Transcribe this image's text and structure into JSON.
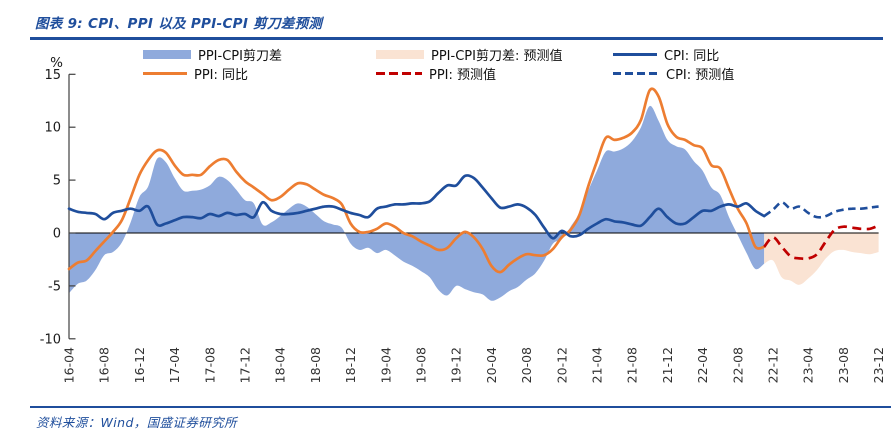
{
  "header": {
    "title": "图表 9:  CPI、PPI 以及 PPI-CPI 剪刀差预测"
  },
  "footer": {
    "source": "资料来源：Wind，国盛证券研究所"
  },
  "legend": {
    "items": [
      {
        "label": "PPI-CPI剪刀差",
        "swatch": "fill",
        "color": "#8FAADC"
      },
      {
        "label": "PPI-CPI剪刀差: 预测值",
        "swatch": "fill",
        "color": "#FAE3D3"
      },
      {
        "label": "CPI: 同比",
        "swatch": "line",
        "color": "#1F4E9C"
      },
      {
        "label": "PPI: 同比",
        "swatch": "line",
        "color": "#ED7D31"
      },
      {
        "label": "PPI: 预测值",
        "swatch": "dash",
        "color": "#C00000"
      },
      {
        "label": "CPI: 预测值",
        "swatch": "dash",
        "color": "#1F4E9C"
      }
    ]
  },
  "chart_data": {
    "type": "line",
    "unit": "%",
    "ylim": [
      -10,
      15
    ],
    "yticks": [
      15,
      10,
      5,
      0,
      -5,
      -10
    ],
    "grid": false,
    "x_tick_labels": [
      "16-04",
      "16-08",
      "16-12",
      "17-04",
      "17-08",
      "17-12",
      "18-04",
      "18-08",
      "18-12",
      "19-04",
      "19-08",
      "19-12",
      "20-04",
      "20-08",
      "20-12",
      "21-04",
      "21-08",
      "21-12",
      "22-04",
      "22-08",
      "22-12",
      "23-04",
      "23-08",
      "23-12"
    ],
    "x_monthly_start": "16-04",
    "x_monthly_end": "23-12",
    "forecast_start": "22-12",
    "colors": {
      "gap_area": "#8FAADC",
      "gap_area_forecast": "#FAE3D3",
      "cpi": "#1F4E9C",
      "ppi": "#ED7D31",
      "ppi_forecast": "#C00000",
      "cpi_forecast": "#1F4E9C",
      "zero_line": "#000000",
      "axis": "#404040",
      "tick_text": "#1a1a1a"
    },
    "actual": {
      "start": "16-04",
      "end": "22-11",
      "cpi": [
        2.3,
        2.0,
        1.9,
        1.8,
        1.3,
        1.9,
        2.1,
        2.3,
        2.1,
        2.5,
        0.8,
        0.9,
        1.2,
        1.5,
        1.5,
        1.4,
        1.8,
        1.6,
        1.9,
        1.7,
        1.8,
        1.5,
        2.9,
        2.1,
        1.8,
        1.8,
        1.9,
        2.1,
        2.3,
        2.5,
        2.5,
        2.2,
        1.9,
        1.7,
        1.5,
        2.3,
        2.5,
        2.7,
        2.7,
        2.8,
        2.8,
        3.0,
        3.8,
        4.5,
        4.5,
        5.4,
        5.2,
        4.3,
        3.3,
        2.4,
        2.5,
        2.7,
        2.4,
        1.7,
        0.5,
        -0.5,
        0.2,
        -0.3,
        -0.2,
        0.4,
        0.9,
        1.3,
        1.1,
        1.0,
        0.8,
        0.7,
        1.5,
        2.3,
        1.5,
        0.9,
        0.9,
        1.5,
        2.1,
        2.1,
        2.5,
        2.7,
        2.5,
        2.8,
        2.1,
        1.6
      ],
      "ppi": [
        -3.4,
        -2.8,
        -2.6,
        -1.7,
        -0.8,
        0.1,
        1.2,
        3.3,
        5.5,
        6.9,
        7.8,
        7.6,
        6.4,
        5.5,
        5.5,
        5.5,
        6.3,
        6.9,
        6.9,
        5.8,
        4.9,
        4.3,
        3.7,
        3.1,
        3.4,
        4.1,
        4.7,
        4.6,
        4.1,
        3.6,
        3.3,
        2.7,
        0.9,
        0.1,
        0.1,
        0.4,
        0.9,
        0.6,
        0.0,
        -0.3,
        -0.8,
        -1.2,
        -1.6,
        -1.4,
        -0.5,
        0.1,
        -0.4,
        -1.5,
        -3.1,
        -3.7,
        -3.0,
        -2.4,
        -2.0,
        -2.1,
        -2.1,
        -1.5,
        -0.4,
        0.3,
        1.7,
        4.4,
        6.8,
        9.0,
        8.8,
        9.0,
        9.5,
        10.7,
        13.5,
        12.9,
        10.3,
        9.1,
        8.8,
        8.3,
        8.0,
        6.4,
        6.1,
        4.2,
        2.3,
        0.9,
        -1.3,
        -1.3
      ],
      "gap": [
        -5.7,
        -4.8,
        -4.5,
        -3.5,
        -2.1,
        -1.8,
        -0.9,
        1.0,
        3.4,
        4.4,
        7.0,
        6.7,
        5.2,
        4.0,
        4.0,
        4.1,
        4.5,
        5.3,
        5.0,
        4.1,
        3.1,
        2.8,
        0.8,
        1.0,
        1.6,
        2.3,
        2.8,
        2.5,
        1.8,
        1.1,
        0.8,
        0.5,
        -1.0,
        -1.6,
        -1.4,
        -1.9,
        -1.6,
        -2.1,
        -2.7,
        -3.1,
        -3.6,
        -4.2,
        -5.4,
        -5.9,
        -5.0,
        -5.3,
        -5.6,
        -5.8,
        -6.4,
        -6.1,
        -5.5,
        -5.1,
        -4.4,
        -3.8,
        -2.6,
        -1.0,
        -0.6,
        0.6,
        1.9,
        4.0,
        5.9,
        7.7,
        7.7,
        8.0,
        8.7,
        10.0,
        12.0,
        10.6,
        8.8,
        8.2,
        7.9,
        6.8,
        5.9,
        4.3,
        3.6,
        1.5,
        -0.2,
        -1.9,
        -3.4,
        -2.9
      ]
    },
    "forecast": {
      "start": "22-12",
      "end": "23-12",
      "cpi": [
        2.2,
        2.9,
        2.3,
        2.5,
        1.9,
        1.5,
        1.6,
        2.0,
        2.2,
        2.3,
        2.3,
        2.4,
        2.5
      ],
      "ppi": [
        -0.4,
        -1.3,
        -2.2,
        -2.4,
        -2.4,
        -2.0,
        -0.8,
        0.3,
        0.6,
        0.5,
        0.4,
        0.4,
        0.7
      ],
      "gap": [
        -2.6,
        -4.2,
        -4.5,
        -4.9,
        -4.3,
        -3.5,
        -2.4,
        -1.7,
        -1.6,
        -1.8,
        -1.9,
        -2.0,
        -1.8
      ]
    }
  }
}
